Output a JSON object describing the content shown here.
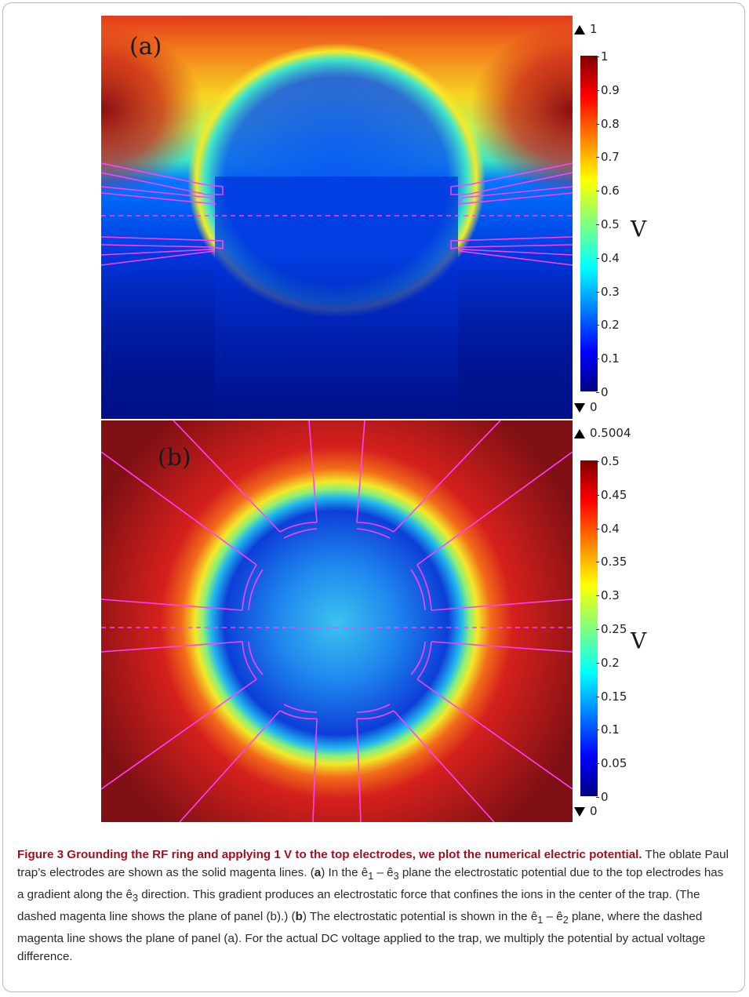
{
  "panel_a": {
    "label": "(a)",
    "max_marker": "1",
    "min_marker": "0",
    "ticks": [
      "1",
      "0.9",
      "0.8",
      "0.7",
      "0.6",
      "0.5",
      "0.4",
      "0.3",
      "0.2",
      "0.1",
      "0"
    ],
    "unit": "V"
  },
  "panel_b": {
    "label": "(b)",
    "max_marker": "0.5004",
    "min_marker": "0",
    "ticks": [
      "0.5",
      "0.45",
      "0.4",
      "0.35",
      "0.3",
      "0.25",
      "0.2",
      "0.15",
      "0.1",
      "0.05",
      "0"
    ],
    "unit": "V"
  },
  "colors": {
    "electrode": "#ff40ff",
    "colormap": [
      "#00007f",
      "#0000ff",
      "#007fff",
      "#00ffff",
      "#7fff7f",
      "#ffff00",
      "#ff7f00",
      "#ff0000",
      "#7f0000"
    ]
  },
  "caption": {
    "title": "Figure 3  Grounding the RF ring and applying 1 V to the top electrodes, we plot the numerical electric potential.",
    "s1": " The oblate Paul trap’s electrodes are shown as the solid magenta lines. (",
    "a": "a",
    "s2": ") In the ê",
    "s3": " – ê",
    "s4": " plane the electrostatic potential due to the top electrodes has a gradient along the ê",
    "s5": " direction. This gradient produces an electrostatic force that confines the ions in the center of the trap. (The dashed magenta line shows the plane of panel (b).) (",
    "b": "b",
    "s6": ") The electrostatic potential is shown in the ê",
    "s7": " – ê",
    "s8": " plane, where the dashed magenta line shows the plane of panel (a). For the actual DC voltage applied to the trap, we multiply the potential by actual voltage difference.",
    "sub1": "1",
    "sub3": "3",
    "sub3b": "3",
    "sub1b": "1",
    "sub2": "2"
  }
}
